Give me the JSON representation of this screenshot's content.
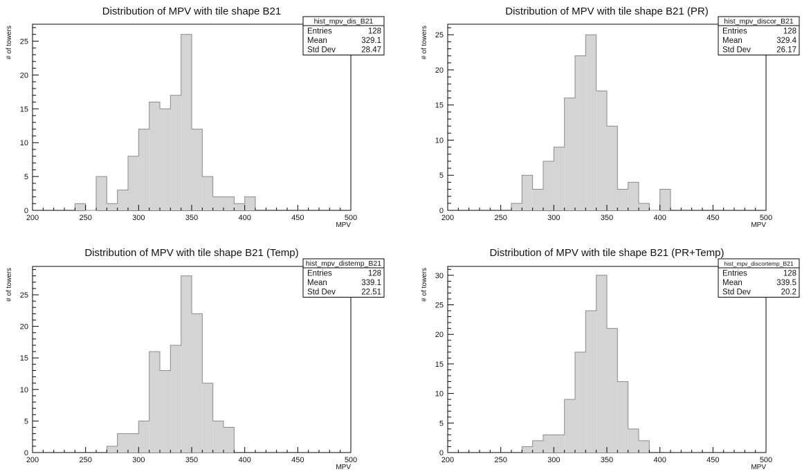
{
  "chart_data": [
    {
      "type": "bar",
      "title": "Distribution of MPV with tile shape B21",
      "xlabel": "MPV",
      "ylabel": "# of towers",
      "xlim": [
        200,
        500
      ],
      "ylim": [
        0,
        27.5
      ],
      "x_ticks": [
        200,
        250,
        300,
        350,
        400,
        450,
        500
      ],
      "y_ticks": [
        0,
        5,
        10,
        15,
        20,
        25
      ],
      "bin_width": 10,
      "bin_lower_edges": [
        240,
        250,
        260,
        270,
        280,
        290,
        300,
        310,
        320,
        330,
        340,
        350,
        360,
        370,
        380,
        390,
        400
      ],
      "values": [
        1,
        0,
        5,
        1,
        3,
        8,
        12,
        16,
        15,
        17,
        26,
        12,
        5,
        2,
        2,
        1,
        2
      ],
      "stats": {
        "name": "hist_mpv_dis_B21",
        "rows": [
          {
            "label": "Entries",
            "value": "128"
          },
          {
            "label": "Mean",
            "value": "329.1"
          },
          {
            "label": "Std Dev",
            "value": "28.47"
          }
        ]
      },
      "fill_color": "#d4d4d4",
      "line_color": "#8a8a8a"
    },
    {
      "type": "bar",
      "title": "Distribution of MPV with tile shape B21 (PR)",
      "xlabel": "MPV",
      "ylabel": "# of towers",
      "xlim": [
        200,
        500
      ],
      "ylim": [
        0,
        26.5
      ],
      "x_ticks": [
        200,
        250,
        300,
        350,
        400,
        450,
        500
      ],
      "y_ticks": [
        0,
        5,
        10,
        15,
        20,
        25
      ],
      "bin_width": 10,
      "bin_lower_edges": [
        260,
        270,
        280,
        290,
        300,
        310,
        320,
        330,
        340,
        350,
        360,
        370,
        380,
        390,
        400
      ],
      "values": [
        1,
        5,
        3,
        7,
        9,
        16,
        22,
        25,
        17,
        12,
        3,
        4,
        1,
        0,
        3
      ],
      "stats": {
        "name": "hist_mpv_discor_B21",
        "rows": [
          {
            "label": "Entries",
            "value": "128"
          },
          {
            "label": "Mean",
            "value": "329.4"
          },
          {
            "label": "Std Dev",
            "value": "26.17"
          }
        ]
      },
      "fill_color": "#d4d4d4",
      "line_color": "#8a8a8a"
    },
    {
      "type": "bar",
      "title": "Distribution of MPV with tile shape B21 (Temp)",
      "xlabel": "MPV",
      "ylabel": "# of towers",
      "xlim": [
        200,
        500
      ],
      "ylim": [
        0,
        29.5
      ],
      "x_ticks": [
        200,
        250,
        300,
        350,
        400,
        450,
        500
      ],
      "y_ticks": [
        0,
        5,
        10,
        15,
        20,
        25
      ],
      "bin_width": 10,
      "bin_lower_edges": [
        270,
        280,
        290,
        300,
        310,
        320,
        330,
        340,
        350,
        360,
        370,
        380
      ],
      "values": [
        1,
        3,
        3,
        5,
        16,
        13,
        17,
        28,
        22,
        11,
        5,
        4
      ],
      "stats": {
        "name": "hist_mpv_distemp_B21",
        "rows": [
          {
            "label": "Entries",
            "value": "128"
          },
          {
            "label": "Mean",
            "value": "339.1"
          },
          {
            "label": "Std Dev",
            "value": "22.51"
          }
        ]
      },
      "fill_color": "#d4d4d4",
      "line_color": "#8a8a8a"
    },
    {
      "type": "bar",
      "title": "Distribution of MPV with tile shape B21 (PR+Temp)",
      "xlabel": "MPV",
      "ylabel": "# of towers",
      "xlim": [
        200,
        500
      ],
      "ylim": [
        0,
        31.5
      ],
      "x_ticks": [
        200,
        250,
        300,
        350,
        400,
        450,
        500
      ],
      "y_ticks": [
        0,
        5,
        10,
        15,
        20,
        25,
        30
      ],
      "bin_width": 10,
      "bin_lower_edges": [
        270,
        280,
        290,
        300,
        310,
        320,
        330,
        340,
        350,
        360,
        370,
        380
      ],
      "values": [
        1,
        2,
        3,
        3,
        9,
        17,
        24,
        30,
        21,
        12,
        4,
        2
      ],
      "stats": {
        "name": "hist_mpv_discortemp_B21",
        "rows": [
          {
            "label": "Entries",
            "value": "128"
          },
          {
            "label": "Mean",
            "value": "339.5"
          },
          {
            "label": "Std Dev",
            "value": "20.2"
          }
        ]
      },
      "fill_color": "#d4d4d4",
      "line_color": "#8a8a8a"
    }
  ]
}
